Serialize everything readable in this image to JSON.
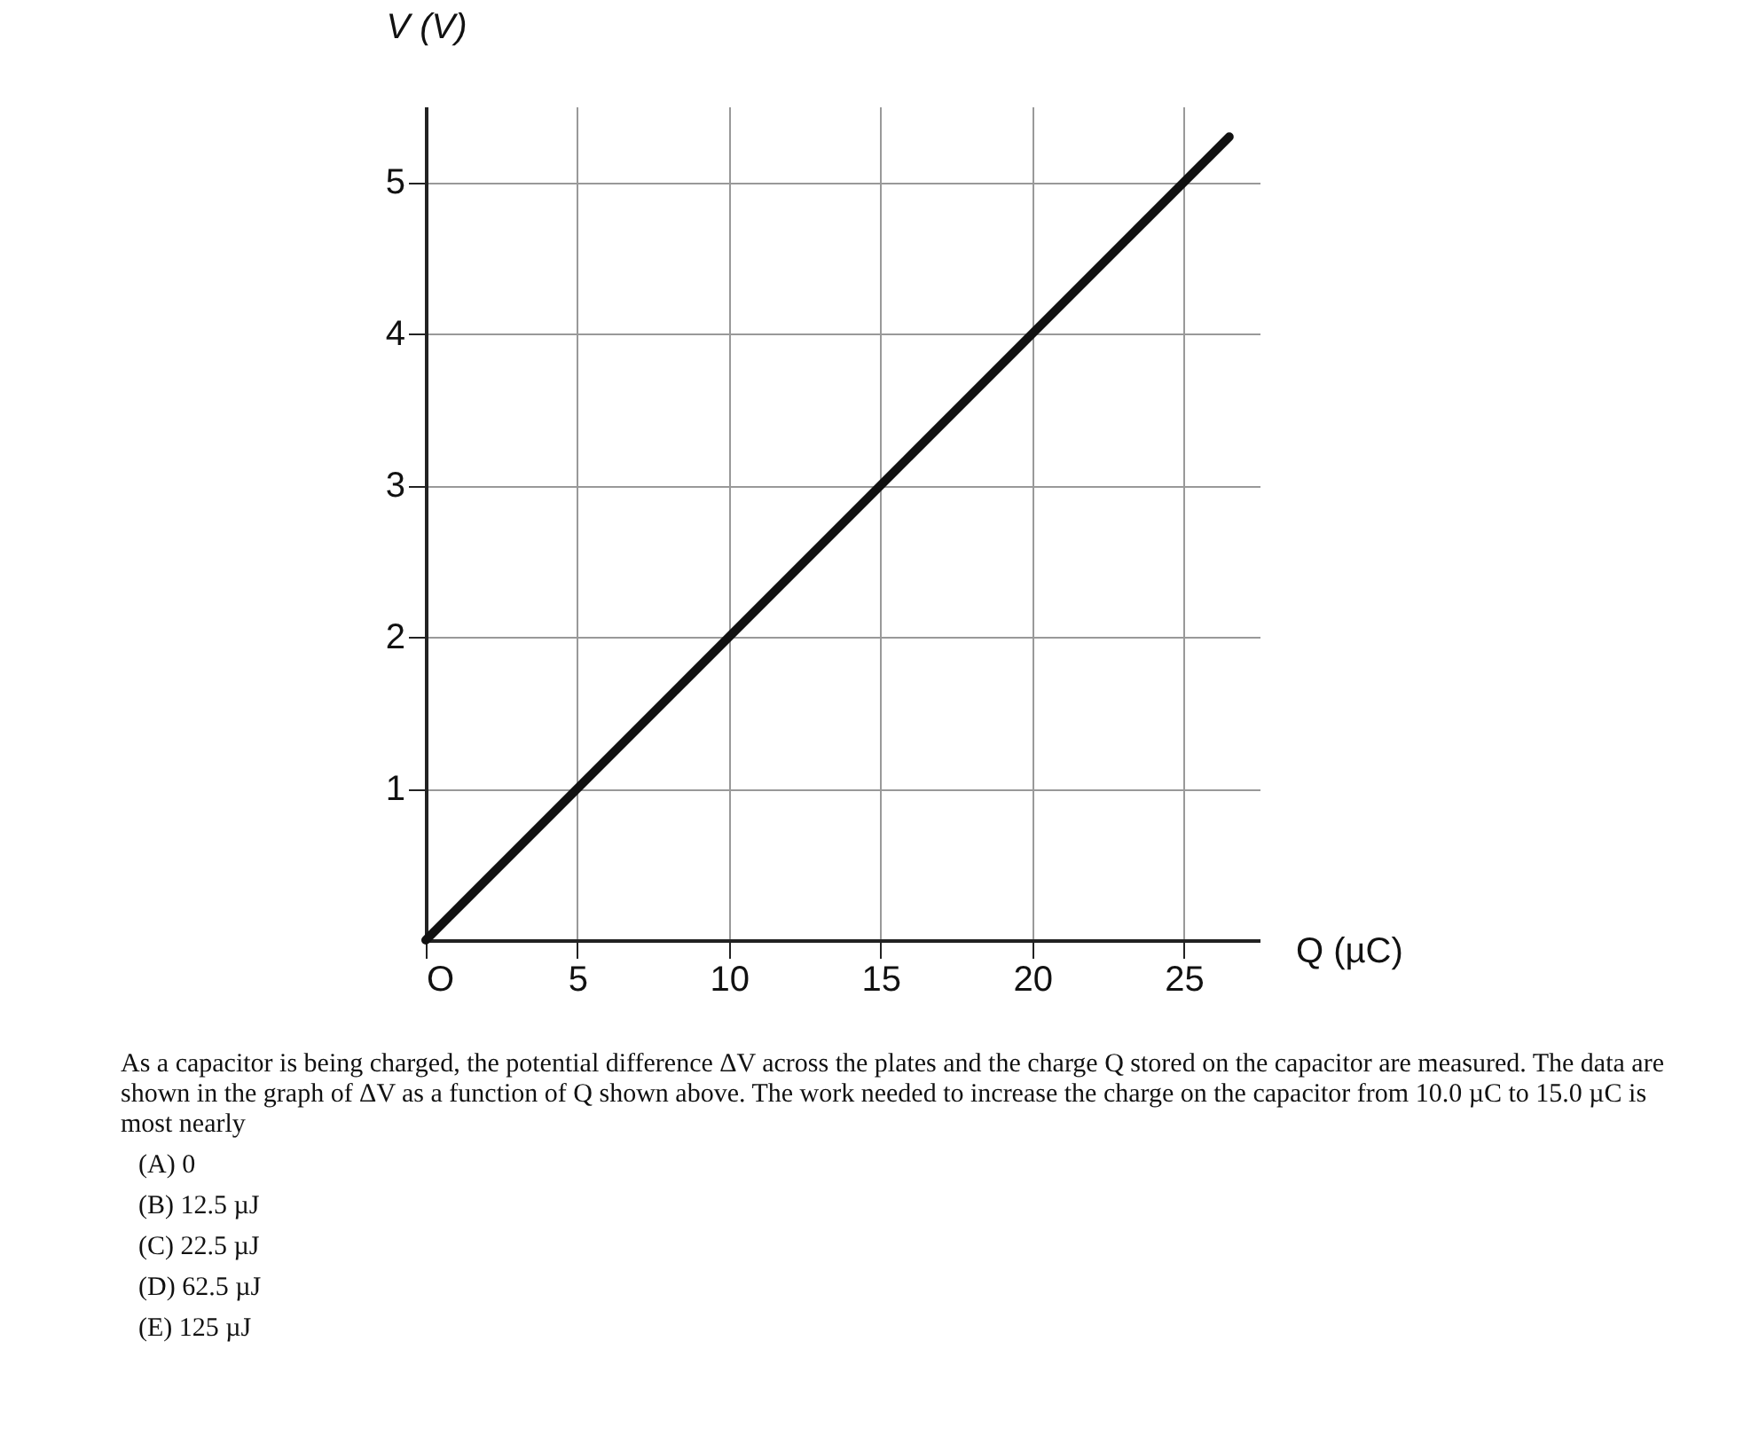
{
  "chart_data": {
    "type": "line",
    "xlabel": "Q (µC)",
    "ylabel": "V (V)",
    "x": [
      0,
      26.5
    ],
    "series": [
      {
        "color": "#111111",
        "values": [
          0,
          5.3
        ]
      }
    ],
    "xlim": [
      0,
      27.5
    ],
    "ylim": [
      0,
      5.5
    ],
    "xticks": [
      {
        "value": 0,
        "label": "O"
      },
      5,
      10,
      15,
      20,
      25
    ],
    "yticks": [
      1,
      2,
      3,
      4,
      5
    ],
    "grid": true,
    "annotations": [
      "As a capacitor is being charged, the potential difference ΔV across the plates and the charge Q stored on the capacitor are measured. The data are shown in the graph of ΔV as a function of Q shown above. The work needed to increase the charge on the capacitor from 10.0 µC to 15.0 µC is most nearly",
      "(A)  0",
      "(B)  12.5 µJ",
      "(C)  22.5 µJ",
      "(D)  62.5 µJ",
      "(E)  125 µJ"
    ]
  }
}
